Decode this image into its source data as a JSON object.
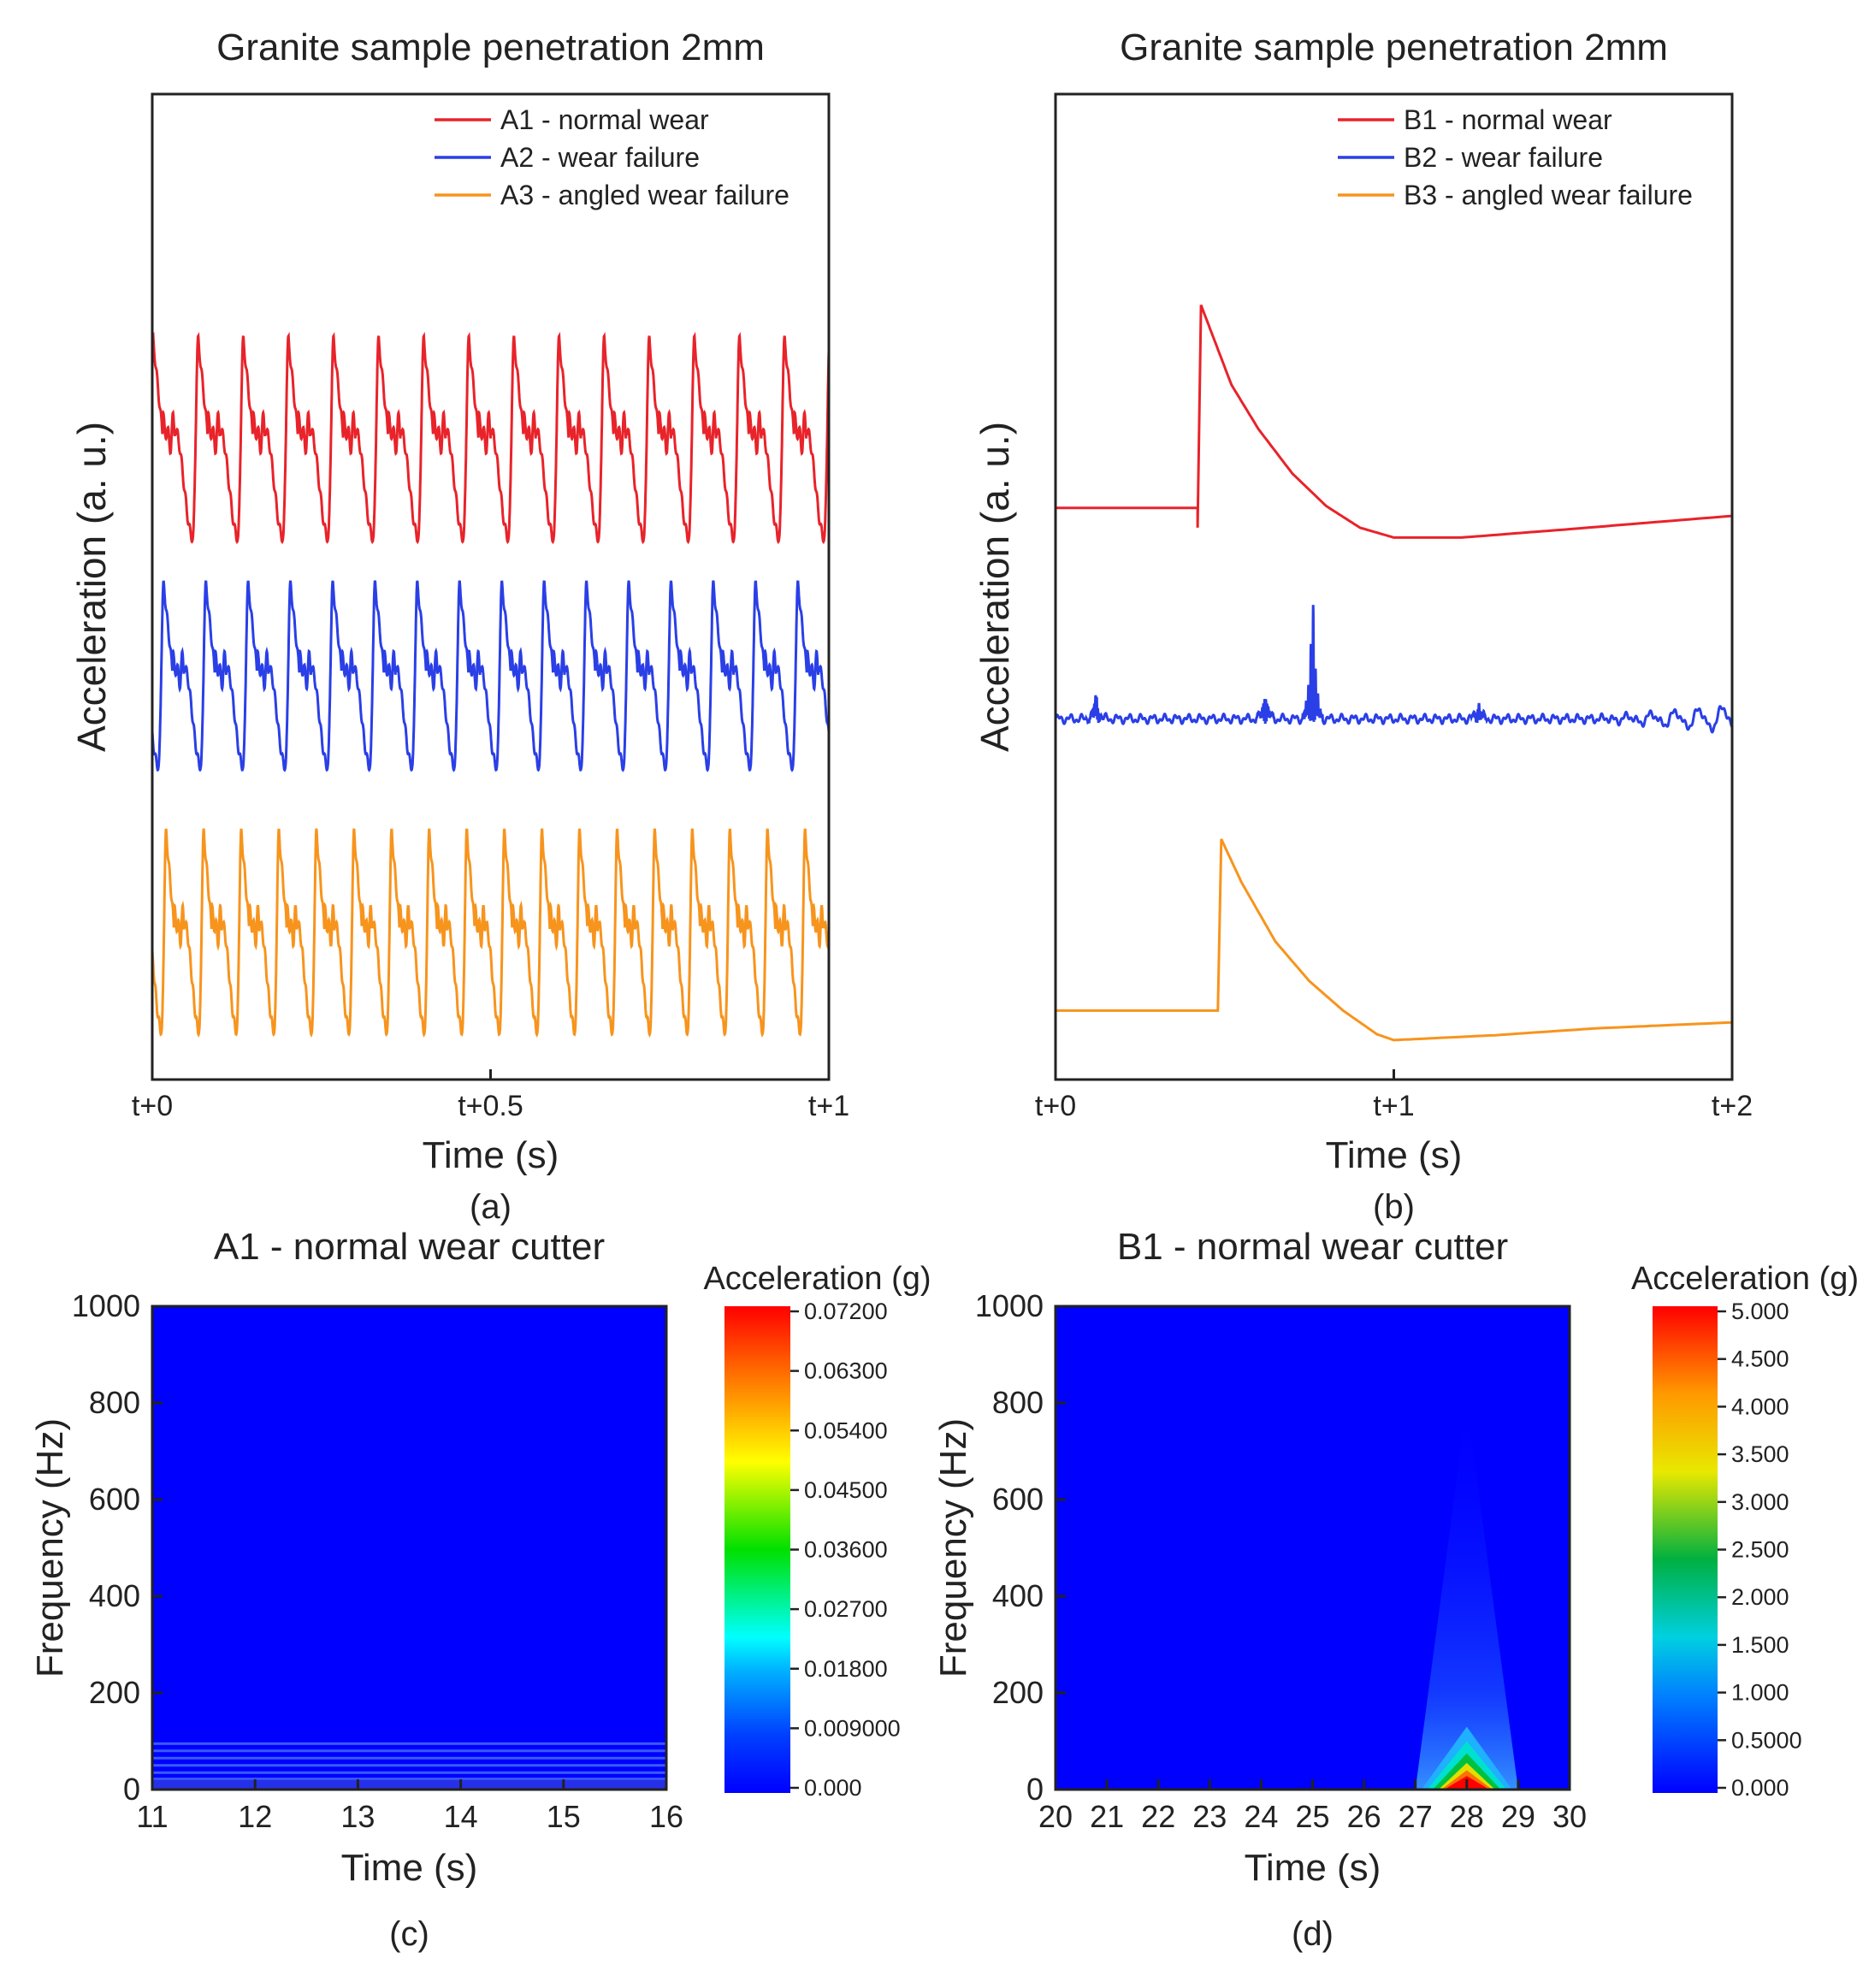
{
  "chart_data": [
    {
      "id": "a",
      "type": "line",
      "title": "Granite sample  penetration 2mm",
      "xlabel": "Time (s)",
      "ylabel": "Acceleration (a. u.)",
      "caption": "(a)",
      "xlim": [
        0,
        1
      ],
      "ylim": [
        0,
        10
      ],
      "xticks": [
        {
          "v": 0,
          "label": "t+0"
        },
        {
          "v": 0.5,
          "label": "t+0.5"
        },
        {
          "v": 1,
          "label": "t+1"
        }
      ],
      "legend_position": "top-right",
      "series": [
        {
          "name": "A1 - normal wear",
          "color": "#e8232a",
          "offset": 6.5,
          "amplitude": 1.0,
          "cycles_per_second": 15,
          "phase": 0.1
        },
        {
          "name": "A2 - wear failure",
          "color": "#2a3fe6",
          "offset": 4.1,
          "amplitude": 0.92,
          "cycles_per_second": 16,
          "phase": 0.85
        },
        {
          "name": "A3 - angled wear failure",
          "color": "#f7941d",
          "offset": 1.5,
          "amplitude": 1.0,
          "cycles_per_second": 18,
          "phase": 0.75
        }
      ]
    },
    {
      "id": "b",
      "type": "line",
      "title": "Granite sample  penetration 2mm",
      "xlabel": "Time (s)",
      "ylabel": "Acceleration (a. u.)",
      "caption": "(b)",
      "xlim": [
        0,
        2
      ],
      "ylim": [
        0,
        10
      ],
      "xticks": [
        {
          "v": 0,
          "label": "t+0"
        },
        {
          "v": 1,
          "label": "t+1"
        },
        {
          "v": 2,
          "label": "t+2"
        }
      ],
      "legend_position": "top-right",
      "series": [
        {
          "name": "B1 - normal wear",
          "color": "#e8232a",
          "points": [
            [
              0,
              5.8
            ],
            [
              0.42,
              5.8
            ],
            [
              0.42,
              5.6
            ],
            [
              0.43,
              7.86
            ],
            [
              0.47,
              7.5
            ],
            [
              0.52,
              7.05
            ],
            [
              0.6,
              6.6
            ],
            [
              0.7,
              6.15
            ],
            [
              0.8,
              5.82
            ],
            [
              0.9,
              5.6
            ],
            [
              1.0,
              5.5
            ],
            [
              1.2,
              5.5
            ],
            [
              1.5,
              5.58
            ],
            [
              2.0,
              5.72
            ]
          ]
        },
        {
          "name": "B2 - wear failure",
          "color": "#2a3fe6",
          "baseline": 3.66,
          "events": [
            [
              0.12,
              0.25,
              -0.25
            ],
            [
              0.62,
              0.3,
              -0.3
            ],
            [
              0.76,
              1.45,
              -0.75
            ],
            [
              1.25,
              0.2,
              -0.15
            ]
          ]
        },
        {
          "name": "B3 - angled wear failure",
          "color": "#f7941d",
          "points": [
            [
              0,
              0.7
            ],
            [
              0.48,
              0.7
            ],
            [
              0.49,
              2.44
            ],
            [
              0.55,
              2.0
            ],
            [
              0.65,
              1.4
            ],
            [
              0.75,
              1.0
            ],
            [
              0.85,
              0.7
            ],
            [
              0.95,
              0.46
            ],
            [
              1.0,
              0.4
            ],
            [
              1.3,
              0.45
            ],
            [
              1.6,
              0.52
            ],
            [
              2.0,
              0.58
            ]
          ]
        }
      ]
    },
    {
      "id": "c",
      "type": "heatmap",
      "title": "A1 - normal wear cutter",
      "xlabel": "Time (s)",
      "ylabel": "Frequency (Hz)",
      "caption": "(c)",
      "xlim": [
        11,
        16
      ],
      "ylim": [
        0,
        1000
      ],
      "xticks": [
        "11",
        "12",
        "13",
        "14",
        "15",
        "16"
      ],
      "yticks": [
        "0",
        "200",
        "400",
        "600",
        "800",
        "1000"
      ],
      "colorbar": {
        "label": "Acceleration (g)",
        "range": [
          0,
          0.072
        ],
        "ticks": [
          "0.000",
          "0.009000",
          "0.01800",
          "0.02700",
          "0.03600",
          "0.04500",
          "0.05400",
          "0.06300",
          "0.07200"
        ]
      },
      "bands_hz": [
        10,
        22,
        35,
        50,
        65,
        80,
        95
      ],
      "band_level": 0.01
    },
    {
      "id": "d",
      "type": "heatmap",
      "title": "B1 - normal wear cutter",
      "xlabel": "Time (s)",
      "ylabel": "Frequency (Hz)",
      "caption": "(d)",
      "xlim": [
        20,
        30
      ],
      "ylim": [
        0,
        1000
      ],
      "xticks": [
        "20",
        "21",
        "22",
        "23",
        "24",
        "25",
        "26",
        "27",
        "28",
        "29",
        "30"
      ],
      "yticks": [
        "0",
        "200",
        "400",
        "600",
        "800",
        "1000"
      ],
      "colorbar": {
        "label": "Acceleration (g)",
        "range": [
          0,
          5
        ],
        "ticks": [
          "0.000",
          "0.5000",
          "1.000",
          "1.500",
          "2.000",
          "2.500",
          "3.000",
          "3.500",
          "4.000",
          "4.500",
          "5.000"
        ]
      },
      "hotspot": {
        "time": 28,
        "time_span": [
          27,
          29
        ],
        "max_freq": 800,
        "peak_value": 5.0
      }
    }
  ]
}
